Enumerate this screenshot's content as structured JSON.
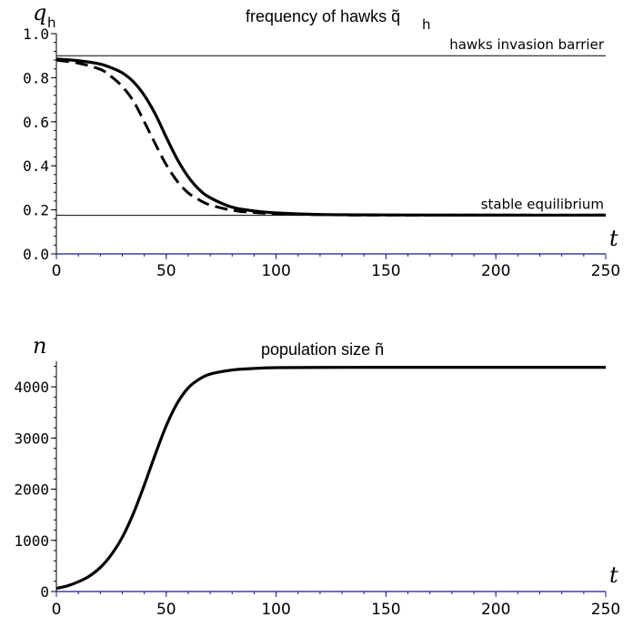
{
  "chart_data": [
    {
      "type": "line",
      "title": "frequency of hawks q̃",
      "title_subscript": "h",
      "ylabel": "q",
      "ylabel_subscript": "h",
      "xlabel": "t",
      "xlim": [
        0,
        250
      ],
      "ylim": [
        0,
        1.0
      ],
      "xticks": [
        0,
        50,
        100,
        150,
        200,
        250
      ],
      "xtick_labels": [
        "0",
        "50",
        "100",
        "150",
        "200",
        "250"
      ],
      "yticks": [
        0,
        0.2,
        0.4,
        0.6,
        0.8,
        1.0
      ],
      "ytick_labels": [
        "0.0",
        "0.2",
        "0.4",
        "0.6",
        "0.8",
        "1.0"
      ],
      "hlines": [
        {
          "y": 0.9,
          "label": "hawks invasion barrier"
        },
        {
          "y": 0.175,
          "label": "stable equilibrium"
        }
      ],
      "series": [
        {
          "style": "solid",
          "x": [
            0,
            10,
            20,
            25,
            30,
            35,
            40,
            45,
            50,
            55,
            60,
            65,
            70,
            80,
            90,
            100,
            120,
            150,
            200,
            250
          ],
          "values": [
            0.885,
            0.877,
            0.862,
            0.845,
            0.822,
            0.782,
            0.72,
            0.635,
            0.53,
            0.43,
            0.35,
            0.292,
            0.255,
            0.212,
            0.195,
            0.186,
            0.179,
            0.177,
            0.176,
            0.176
          ]
        },
        {
          "style": "dashed",
          "x": [
            0,
            10,
            20,
            25,
            30,
            35,
            40,
            45,
            50,
            55,
            60,
            65,
            70,
            80,
            90,
            100,
            120,
            150,
            200,
            250
          ],
          "values": [
            0.88,
            0.866,
            0.838,
            0.805,
            0.76,
            0.695,
            0.6,
            0.5,
            0.405,
            0.33,
            0.277,
            0.245,
            0.222,
            0.198,
            0.188,
            0.183,
            0.178,
            0.176,
            0.176,
            0.176
          ]
        }
      ]
    },
    {
      "type": "line",
      "title": "population size ñ",
      "ylabel": "n",
      "xlabel": "t",
      "xlim": [
        0,
        250
      ],
      "ylim": [
        0,
        4500
      ],
      "xticks": [
        0,
        50,
        100,
        150,
        200,
        250
      ],
      "xtick_labels": [
        "0",
        "50",
        "100",
        "150",
        "200",
        "250"
      ],
      "yticks": [
        0,
        1000,
        2000,
        3000,
        4000
      ],
      "ytick_labels": [
        "0",
        "1000",
        "2000",
        "3000",
        "4000"
      ],
      "series": [
        {
          "style": "solid",
          "x": [
            0,
            5,
            10,
            15,
            20,
            25,
            30,
            35,
            40,
            45,
            50,
            55,
            60,
            65,
            70,
            80,
            90,
            100,
            120,
            150,
            200,
            250
          ],
          "values": [
            60,
            110,
            190,
            300,
            470,
            720,
            1060,
            1520,
            2080,
            2680,
            3240,
            3680,
            3980,
            4150,
            4250,
            4330,
            4360,
            4375,
            4380,
            4382,
            4382,
            4382
          ]
        }
      ]
    }
  ]
}
